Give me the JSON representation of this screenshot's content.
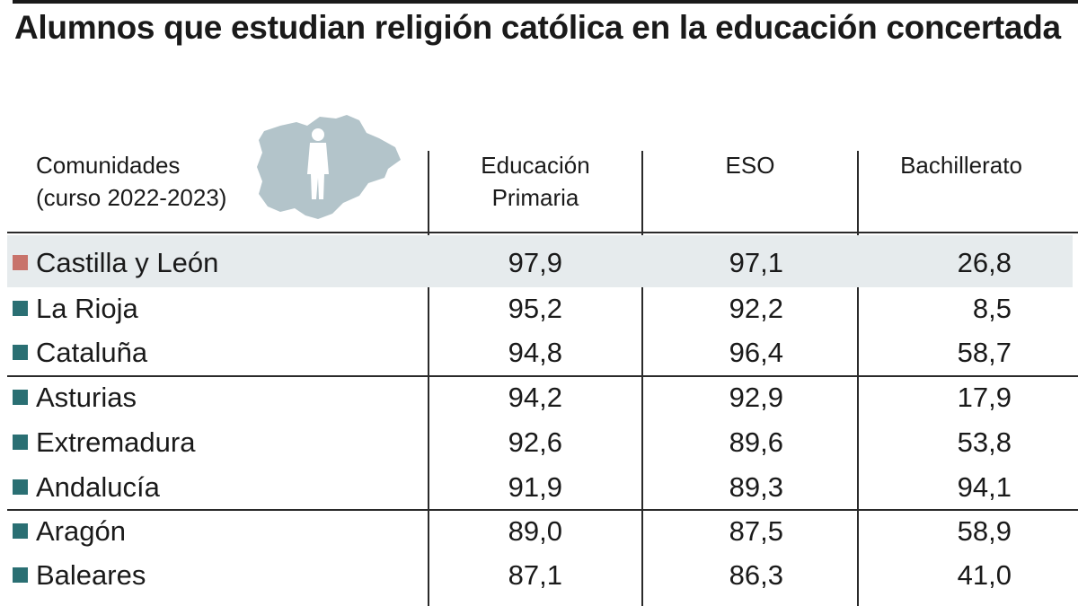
{
  "title": "Alumnos que estudian religión católica en la educación concertada",
  "colors": {
    "highlight_marker": "#c8736b",
    "marker": "#2a6f73",
    "highlight_row_bg": "#e6ebed",
    "map_fill": "#b3c4ca"
  },
  "map_icon": "castilla-y-leon-map-with-student-silhouette-icon",
  "chart_data": {
    "type": "table",
    "columns": {
      "region": [
        "Comunidades",
        "(curso 2022-2023)"
      ],
      "primaria": [
        "Educación",
        "Primaria"
      ],
      "eso": [
        "ESO"
      ],
      "bachillerato": [
        "Bachillerato"
      ]
    },
    "rows": [
      {
        "region": "Castilla y León",
        "primaria": "97,9",
        "eso": "97,1",
        "bachillerato": "26,8",
        "highlight": true
      },
      {
        "region": "La Rioja",
        "primaria": "95,2",
        "eso": "92,2",
        "bachillerato": "8,5"
      },
      {
        "region": "Cataluña",
        "primaria": "94,8",
        "eso": "96,4",
        "bachillerato": "58,7"
      },
      {
        "region": "Asturias",
        "primaria": "94,2",
        "eso": "92,9",
        "bachillerato": "17,9"
      },
      {
        "region": "Extremadura",
        "primaria": "92,6",
        "eso": "89,6",
        "bachillerato": "53,8"
      },
      {
        "region": "Andalucía",
        "primaria": "91,9",
        "eso": "89,3",
        "bachillerato": "94,1"
      },
      {
        "region": "Aragón",
        "primaria": "89,0",
        "eso": "87,5",
        "bachillerato": "58,9"
      },
      {
        "region": "Baleares",
        "primaria": "87,1",
        "eso": "86,3",
        "bachillerato": "41,0"
      }
    ]
  }
}
